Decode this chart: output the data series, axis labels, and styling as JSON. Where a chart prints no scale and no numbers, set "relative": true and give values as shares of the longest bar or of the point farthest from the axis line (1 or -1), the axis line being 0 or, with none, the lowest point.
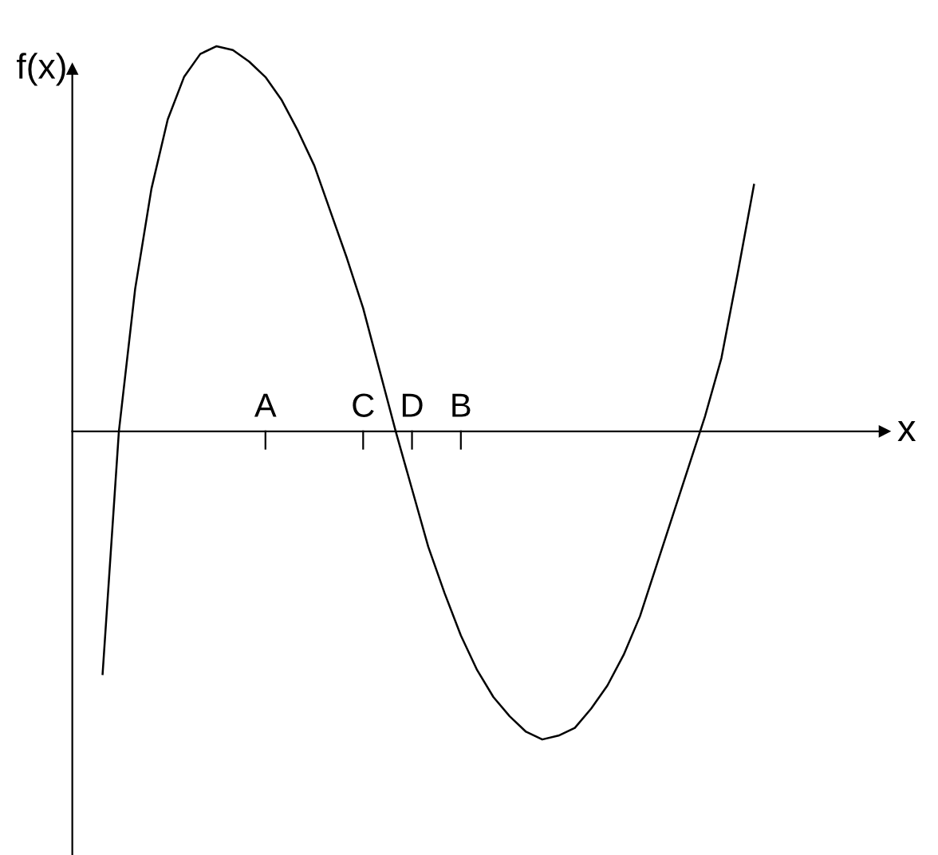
{
  "chart_data": {
    "type": "line",
    "relative": true,
    "xlabel": "x",
    "ylabel": "f(x)",
    "categories": [
      null,
      null,
      null,
      null,
      null,
      null,
      null,
      null,
      null,
      null,
      "A",
      null,
      null,
      null,
      null,
      null,
      "C",
      null,
      null,
      "D",
      null,
      null,
      "B",
      null,
      null,
      null,
      null,
      null,
      null,
      null,
      null,
      null,
      null,
      null,
      null,
      null,
      null,
      null,
      null,
      null,
      null
    ],
    "series": [
      {
        "color": "#000000",
        "values": [
          -0.63,
          0.0,
          0.37,
          0.63,
          0.81,
          0.92,
          0.98,
          1.0,
          0.99,
          0.96,
          0.92,
          0.86,
          0.78,
          0.69,
          0.57,
          0.45,
          0.32,
          0.16,
          0.0,
          -0.15,
          -0.3,
          -0.42,
          -0.53,
          -0.62,
          -0.69,
          -0.74,
          -0.78,
          -0.8,
          -0.79,
          -0.77,
          -0.72,
          -0.66,
          -0.58,
          -0.48,
          -0.35,
          -0.22,
          -0.09,
          0.04,
          0.19,
          0.41,
          0.64
        ]
      }
    ]
  }
}
